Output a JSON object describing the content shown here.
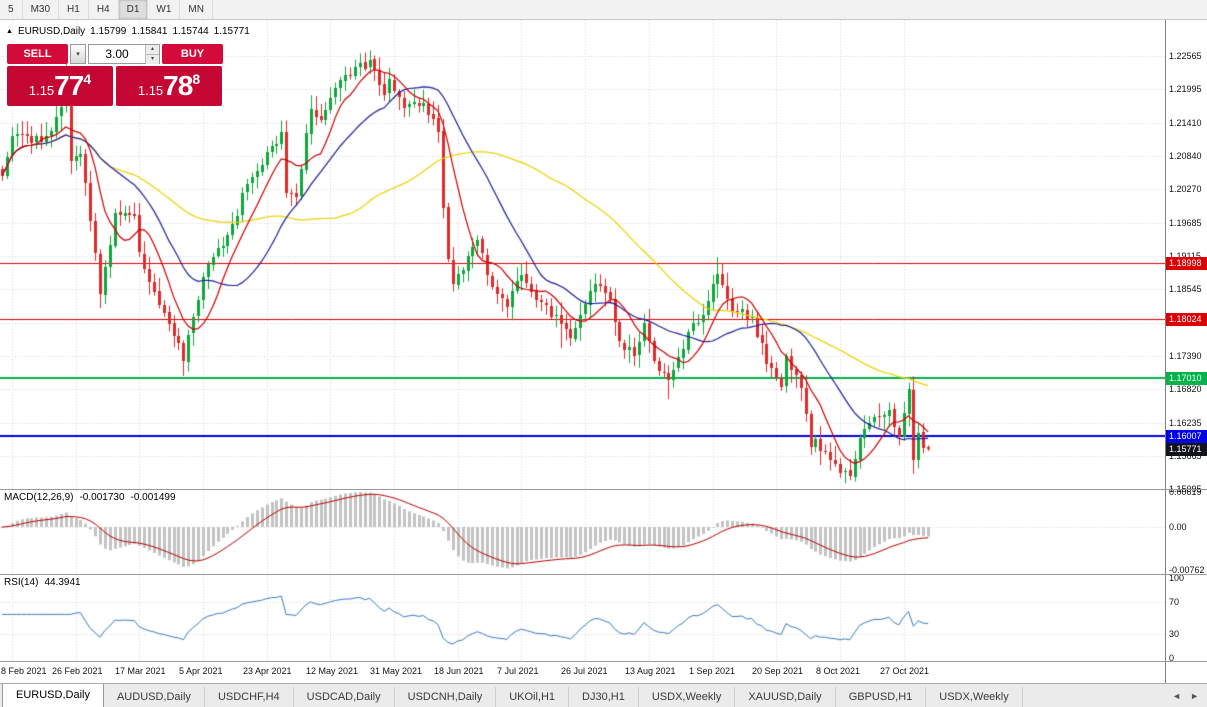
{
  "toolbar": {
    "timeframes": [
      {
        "label": "5",
        "active": false
      },
      {
        "label": "M30",
        "active": false
      },
      {
        "label": "H1",
        "active": false
      },
      {
        "label": "H4",
        "active": false
      },
      {
        "label": "D1",
        "active": true
      },
      {
        "label": "W1",
        "active": false
      },
      {
        "label": "MN",
        "active": false
      }
    ]
  },
  "chart_header": {
    "marker": "▲",
    "symbol": "EURUSD,Daily",
    "open": "1.15799",
    "high": "1.15841",
    "low": "1.15744",
    "close": "1.15771"
  },
  "trade_panel": {
    "sell_label": "SELL",
    "buy_label": "BUY",
    "lot_size": "3.00",
    "bid": {
      "big_figure": "1.15",
      "pips": "77",
      "pipette": "4"
    },
    "ask": {
      "big_figure": "1.15",
      "pips": "78",
      "pipette": "8"
    }
  },
  "indicator_labels": {
    "macd": {
      "name": "MACD(12,26,9)",
      "macd_value": "-0.001730",
      "signal_value": "-0.001499"
    },
    "rsi": {
      "name": "RSI(14)",
      "value": "44.3941"
    }
  },
  "chart_data": {
    "type": "candlestick",
    "symbol": "EURUSD",
    "timeframe": "Daily",
    "quote": {
      "open": 1.15799,
      "high": 1.15841,
      "low": 1.15744,
      "close": 1.15771,
      "bid": 1.15774,
      "ask": 1.15788
    },
    "bars": 190,
    "price_axis_ticks": [
      "1.22565",
      "1.21995",
      "1.21410",
      "1.20840",
      "1.20270",
      "1.19685",
      "1.19115",
      "1.18545",
      "1.17960",
      "1.17390",
      "1.16820",
      "1.16235",
      "1.15665",
      "1.15095"
    ],
    "date_ticks": [
      {
        "label": "8 Feb 2021",
        "index": 2
      },
      {
        "label": "26 Feb 2021",
        "index": 15
      },
      {
        "label": "17 Mar 2021",
        "index": 28
      },
      {
        "label": "5 Apr 2021",
        "index": 41
      },
      {
        "label": "23 Apr 2021",
        "index": 54
      },
      {
        "label": "12 May 2021",
        "index": 67
      },
      {
        "label": "31 May 2021",
        "index": 80
      },
      {
        "label": "18 Jun 2021",
        "index": 93
      },
      {
        "label": "7 Jul 2021",
        "index": 106
      },
      {
        "label": "26 Jul 2021",
        "index": 119
      },
      {
        "label": "13 Aug 2021",
        "index": 132
      },
      {
        "label": "1 Sep 2021",
        "index": 145
      },
      {
        "label": "20 Sep 2021",
        "index": 158
      },
      {
        "label": "8 Oct 2021",
        "index": 171
      },
      {
        "label": "27 Oct 2021",
        "index": 184
      }
    ],
    "price_anchors": [
      [
        0,
        1.205
      ],
      [
        2,
        1.2119
      ],
      [
        4,
        1.212
      ],
      [
        6,
        1.2106
      ],
      [
        9,
        1.2119
      ],
      [
        12,
        1.2168
      ],
      [
        13,
        1.2175
      ],
      [
        14,
        1.2075
      ],
      [
        16,
        1.2088
      ],
      [
        18,
        1.197
      ],
      [
        20,
        1.1845
      ],
      [
        23,
        1.1985
      ],
      [
        27,
        1.198
      ],
      [
        28,
        1.1917
      ],
      [
        31,
        1.185
      ],
      [
        34,
        1.1794
      ],
      [
        36,
        1.176
      ],
      [
        37,
        1.173
      ],
      [
        38,
        1.1775
      ],
      [
        41,
        1.1875
      ],
      [
        47,
        1.1967
      ],
      [
        50,
        1.2035
      ],
      [
        54,
        1.209
      ],
      [
        57,
        1.2125
      ],
      [
        58,
        1.202
      ],
      [
        60,
        1.2013
      ],
      [
        63,
        1.2165
      ],
      [
        65,
        1.2147
      ],
      [
        70,
        1.2223
      ],
      [
        75,
        1.225
      ],
      [
        78,
        1.219
      ],
      [
        79,
        1.2216
      ],
      [
        82,
        1.2166
      ],
      [
        86,
        1.2175
      ],
      [
        89,
        1.2125
      ],
      [
        90,
        1.1994
      ],
      [
        91,
        1.1906
      ],
      [
        92,
        1.1863
      ],
      [
        97,
        1.1938
      ],
      [
        100,
        1.1858
      ],
      [
        103,
        1.1823
      ],
      [
        106,
        1.1879
      ],
      [
        109,
        1.1834
      ],
      [
        114,
        1.1794
      ],
      [
        116,
        1.177
      ],
      [
        121,
        1.1862
      ],
      [
        124,
        1.1838
      ],
      [
        126,
        1.1763
      ],
      [
        129,
        1.1739
      ],
      [
        131,
        1.1795
      ],
      [
        134,
        1.1712
      ],
      [
        136,
        1.1697
      ],
      [
        141,
        1.1796
      ],
      [
        143,
        1.1809
      ],
      [
        146,
        1.188
      ],
      [
        149,
        1.1816
      ],
      [
        153,
        1.1805
      ],
      [
        156,
        1.1725
      ],
      [
        159,
        1.1686
      ],
      [
        160,
        1.1739
      ],
      [
        163,
        1.1683
      ],
      [
        165,
        1.158
      ],
      [
        166,
        1.1595
      ],
      [
        169,
        1.1558
      ],
      [
        173,
        1.153
      ],
      [
        175,
        1.1597
      ],
      [
        178,
        1.1633
      ],
      [
        181,
        1.1645
      ],
      [
        183,
        1.1598
      ],
      [
        185,
        1.1682
      ],
      [
        186,
        1.156
      ],
      [
        187,
        1.1606
      ],
      [
        188,
        1.158
      ],
      [
        189,
        1.15771
      ]
    ],
    "wick_overrides": {
      "13": {
        "h": 1.2243
      },
      "37": {
        "l": 1.1704
      },
      "75": {
        "h": 1.2266
      },
      "114": {
        "l": 1.1752
      },
      "136": {
        "l": 1.1664
      },
      "146": {
        "h": 1.1909
      },
      "173": {
        "l": 1.1524
      },
      "185": {
        "h": 1.1692
      },
      "186": {
        "l": 1.1535
      },
      "189": {
        "h": 1.15841,
        "l": 1.15744
      }
    },
    "levels": [
      {
        "price": 1.18998,
        "label": "1.18998",
        "color": "#dd0000",
        "width": 1
      },
      {
        "price": 1.18024,
        "label": "1.18024",
        "color": "#dd0000",
        "width": 1
      },
      {
        "price": 1.1701,
        "label": "1.17010",
        "color": "#00b44a",
        "width": 2
      },
      {
        "price": 1.16007,
        "label": "1.16007",
        "color": "#0000e6",
        "width": 2
      }
    ],
    "current_price_tag": {
      "price": 1.15771,
      "label": "1.15771",
      "color": "#12121c"
    },
    "moving_averages": [
      {
        "period": 8,
        "color": "#cc0000"
      },
      {
        "period": 21,
        "color": "#1f1f9c"
      },
      {
        "period": 55,
        "color": "#eed202"
      }
    ],
    "candle_up_color": "#11a63d",
    "candle_down_color": "#dd2b2b",
    "macd": {
      "params": [
        12,
        26,
        9
      ],
      "axis_ticks": [
        "0.00619",
        "0.00",
        "-0.00762"
      ],
      "histogram_color": "#c3c3c3",
      "signal_color": "#b80000"
    },
    "rsi": {
      "period": 14,
      "axis_ticks": [
        "100",
        "70",
        "30",
        "0"
      ],
      "levels": [
        70,
        30
      ],
      "color": "#3b7bbf"
    }
  },
  "tabs": {
    "scroll_left": "◄",
    "scroll_right": "►",
    "items": [
      {
        "label": "EURUSD,Daily",
        "active": true
      },
      {
        "label": "AUDUSD,Daily",
        "active": false
      },
      {
        "label": "USDCHF,H4",
        "active": false
      },
      {
        "label": "USDCAD,Daily",
        "active": false
      },
      {
        "label": "USDCNH,Daily",
        "active": false
      },
      {
        "label": "UKOil,H1",
        "active": false
      },
      {
        "label": "DJ30,H1",
        "active": false
      },
      {
        "label": "USDX,Weekly",
        "active": false
      },
      {
        "label": "XAUUSD,Daily",
        "active": false
      },
      {
        "label": "GBPUSD,H1",
        "active": false
      },
      {
        "label": "USDX,Weekly",
        "active": false
      }
    ]
  }
}
